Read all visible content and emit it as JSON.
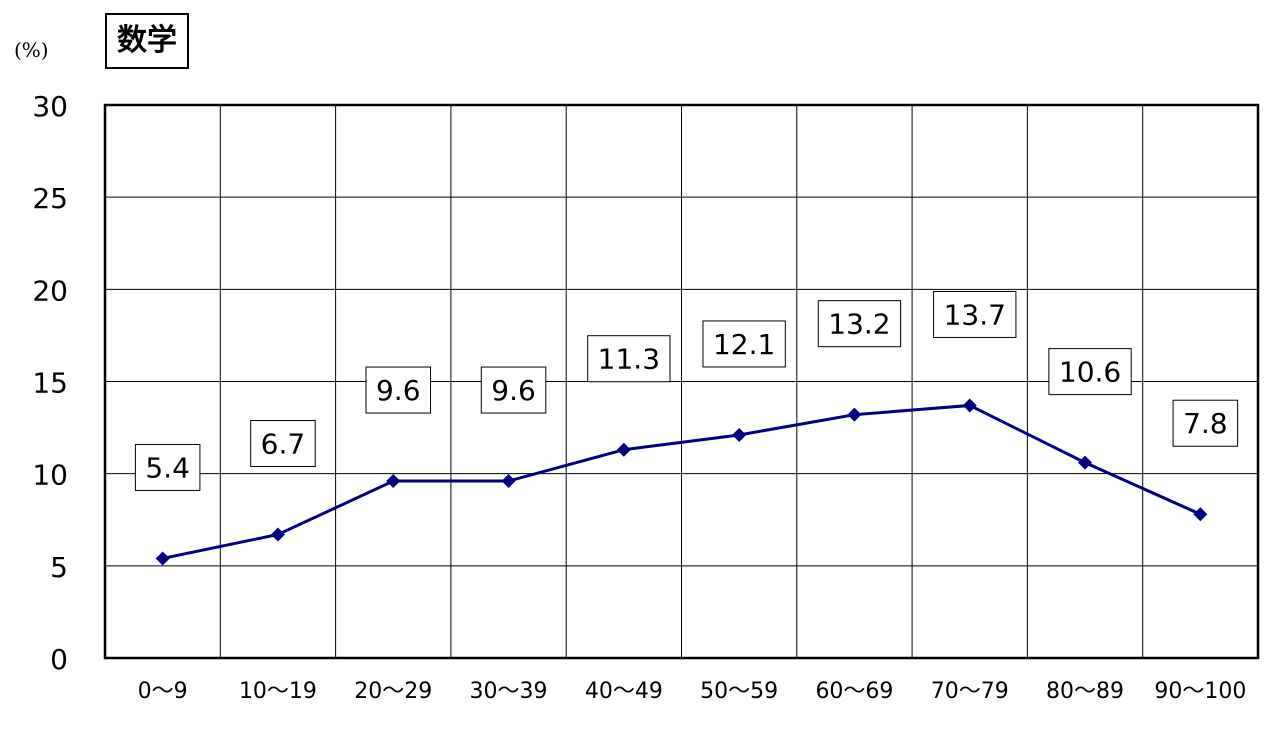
{
  "chart_data": {
    "type": "line",
    "title": "数学",
    "ylabel": "(%)",
    "xlabel": "",
    "categories": [
      "0～9",
      "10～19",
      "20～29",
      "30～39",
      "40～49",
      "50～59",
      "60～69",
      "70～79",
      "80～89",
      "90～100"
    ],
    "series": [
      {
        "values": [
          5.4,
          6.7,
          9.6,
          9.6,
          11.3,
          12.1,
          13.2,
          13.7,
          10.6,
          7.8
        ]
      }
    ],
    "ylim": [
      0,
      30
    ],
    "yticks": [
      0,
      5,
      10,
      15,
      20,
      25,
      30
    ],
    "grid": true,
    "legend": "none",
    "colors": {
      "line": "#000080",
      "marker": "#000080"
    }
  }
}
